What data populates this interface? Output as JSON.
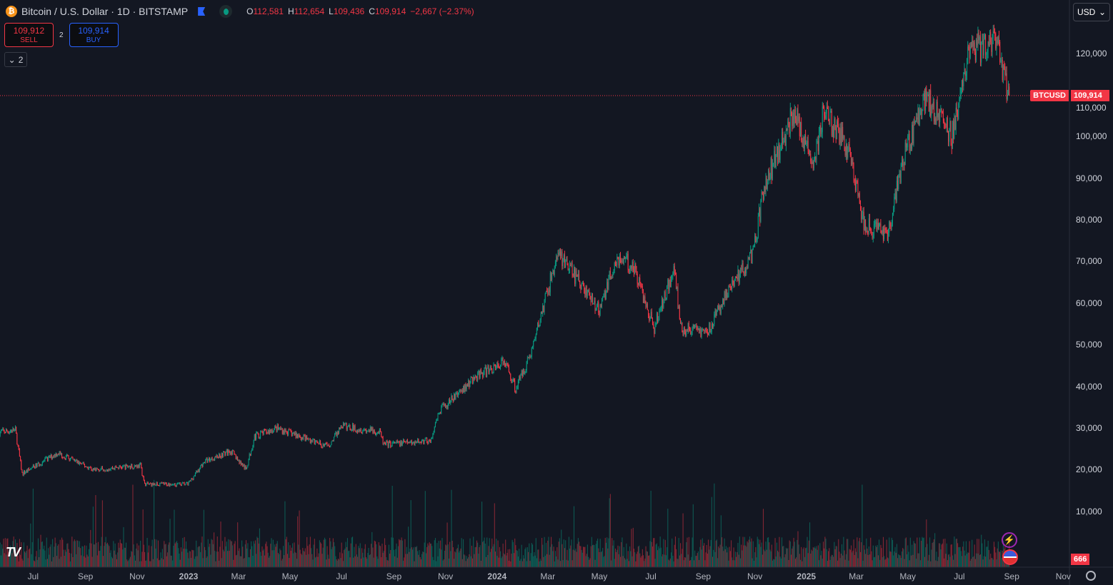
{
  "header": {
    "symbol": "Bitcoin / U.S. Dollar · 1D · BITSTAMP",
    "open_label": "O",
    "open": "112,581",
    "high_label": "H",
    "high": "112,654",
    "low_label": "L",
    "low": "109,436",
    "close_label": "C",
    "close": "109,914",
    "change": "−2,667 (−2.37%)"
  },
  "trade": {
    "sell_price": "109,912",
    "sell_label": "SELL",
    "spread": "2",
    "buy_price": "109,914",
    "buy_label": "BUY"
  },
  "indicators_toggle": "2",
  "currency": "USD",
  "price_tag": {
    "symbol": "BTCUSD",
    "price": "109,914"
  },
  "volume_tag": "666",
  "colors": {
    "up": "#089981",
    "down": "#f23645",
    "bg": "#131722"
  },
  "chart_data": {
    "type": "candlestick",
    "y_ticks": [
      "120,000",
      "110,000",
      "100,000",
      "90,000",
      "80,000",
      "70,000",
      "60,000",
      "50,000",
      "40,000",
      "30,000",
      "20,000",
      "10,000"
    ],
    "y_values": [
      120000,
      110000,
      100000,
      90000,
      80000,
      70000,
      60000,
      50000,
      40000,
      30000,
      20000,
      10000
    ],
    "x_ticks": [
      "Jul",
      "Sep",
      "Nov",
      "2023",
      "Mar",
      "May",
      "Jul",
      "Sep",
      "Nov",
      "2024",
      "Mar",
      "May",
      "Jul",
      "Sep",
      "Nov",
      "2025",
      "Mar",
      "May",
      "Jul",
      "Sep",
      "Nov"
    ],
    "x_tick_dates": [
      "2022-07-01",
      "2022-09-01",
      "2022-11-01",
      "2023-01-01",
      "2023-03-01",
      "2023-05-01",
      "2023-07-01",
      "2023-09-01",
      "2023-11-01",
      "2024-01-01",
      "2024-03-01",
      "2024-05-01",
      "2024-07-01",
      "2024-09-01",
      "2024-11-01",
      "2025-01-01",
      "2025-03-01",
      "2025-05-01",
      "2025-07-01",
      "2025-09-01",
      "2025-11-01"
    ],
    "close_anchors": [
      [
        "2022-05-22",
        29000
      ],
      [
        "2022-06-10",
        29500
      ],
      [
        "2022-06-18",
        19000
      ],
      [
        "2022-07-30",
        24000
      ],
      [
        "2022-09-10",
        20000
      ],
      [
        "2022-11-05",
        21000
      ],
      [
        "2022-11-10",
        16500
      ],
      [
        "2022-12-31",
        16500
      ],
      [
        "2023-01-20",
        22000
      ],
      [
        "2023-02-20",
        24500
      ],
      [
        "2023-03-10",
        20000
      ],
      [
        "2023-03-20",
        28000
      ],
      [
        "2023-04-15",
        30000
      ],
      [
        "2023-06-15",
        25500
      ],
      [
        "2023-07-01",
        30500
      ],
      [
        "2023-08-15",
        29000
      ],
      [
        "2023-08-20",
        26000
      ],
      [
        "2023-10-15",
        27000
      ],
      [
        "2023-10-25",
        34000
      ],
      [
        "2023-12-05",
        42000
      ],
      [
        "2024-01-10",
        46000
      ],
      [
        "2024-01-23",
        39500
      ],
      [
        "2024-02-10",
        48000
      ],
      [
        "2024-03-13",
        72000
      ],
      [
        "2024-04-15",
        63000
      ],
      [
        "2024-05-01",
        58000
      ],
      [
        "2024-05-21",
        71000
      ],
      [
        "2024-06-10",
        69000
      ],
      [
        "2024-07-05",
        54000
      ],
      [
        "2024-07-29",
        69000
      ],
      [
        "2024-08-05",
        54000
      ],
      [
        "2024-09-06",
        53000
      ],
      [
        "2024-10-01",
        63000
      ],
      [
        "2024-10-30",
        72000
      ],
      [
        "2024-11-12",
        88000
      ],
      [
        "2024-12-17",
        106000
      ],
      [
        "2025-01-10",
        93000
      ],
      [
        "2025-01-21",
        106000
      ],
      [
        "2025-02-20",
        97000
      ],
      [
        "2025-03-10",
        79000
      ],
      [
        "2025-04-07",
        76000
      ],
      [
        "2025-04-25",
        94000
      ],
      [
        "2025-05-22",
        110000
      ],
      [
        "2025-06-22",
        100000
      ],
      [
        "2025-07-14",
        121000
      ],
      [
        "2025-08-14",
        122000
      ],
      [
        "2025-08-29",
        109914
      ]
    ],
    "last_price": 109914,
    "ylim": [
      0,
      125000
    ]
  }
}
